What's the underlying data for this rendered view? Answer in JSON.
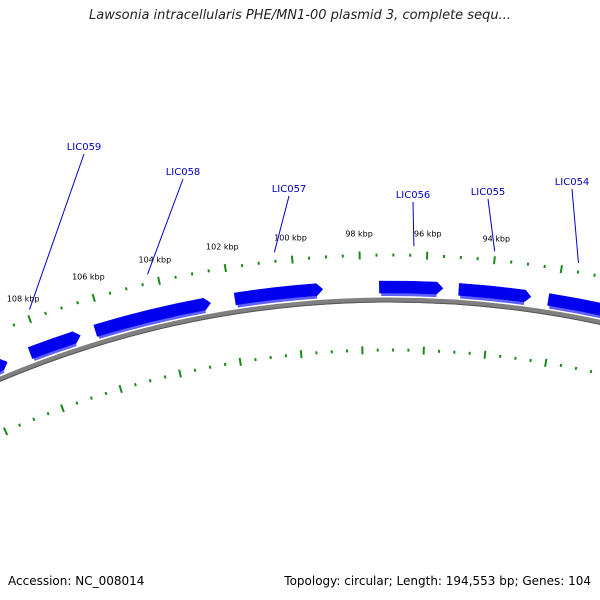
{
  "title": "Lawsonia intracellularis PHE/MN1-00 plasmid 3, complete sequ...",
  "footer": {
    "accession": "Accession: NC_008014",
    "summary": "Topology: circular; Length: 194,553 bp; Genes: 104"
  },
  "colors": {
    "gene_fill": "#0000ee",
    "gene_shade": "#6060ff",
    "backbone": "#808080",
    "backbone_dark": "#555555",
    "tick": "#1a8a1a",
    "gene_label": "#0000bb",
    "leader": "#0000cc",
    "axis_label": "#000000"
  },
  "scale_labels": [
    "108 kbp",
    "106 kbp",
    "104 kbp",
    "102 kbp",
    "100 kbp",
    "98 kbp",
    "96 kbp",
    "94 kbp"
  ],
  "genes": [
    {
      "label": ""
    },
    {
      "label": "LIC059"
    },
    {
      "label": "LIC058"
    },
    {
      "label": "LIC057"
    },
    {
      "label": "LIC056"
    },
    {
      "label": "LIC055"
    },
    {
      "label": "LIC054"
    }
  ]
}
